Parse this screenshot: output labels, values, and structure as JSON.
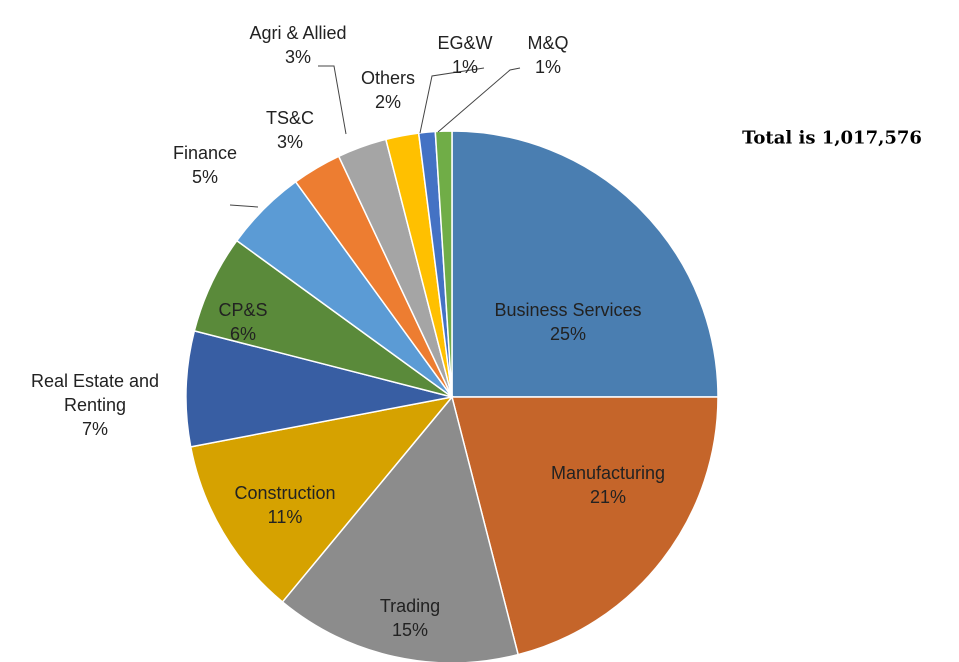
{
  "chart_data": {
    "type": "pie",
    "annotation": "Total is 1,017,576",
    "categories": [
      "Business Services",
      "Manufacturing",
      "Trading",
      "Construction",
      "Real Estate and Renting",
      "CP&S",
      "Finance",
      "TS&C",
      "Agri & Allied",
      "Others",
      "EG&W",
      "M&Q"
    ],
    "values": [
      25,
      21,
      15,
      11,
      7,
      6,
      5,
      3,
      3,
      2,
      1,
      1
    ],
    "value_labels": [
      "25%",
      "21%",
      "15%",
      "11%",
      "7%",
      "6%",
      "5%",
      "3%",
      "3%",
      "2%",
      "1%",
      "1%"
    ],
    "colors": [
      "#4a7eb1",
      "#c5652a",
      "#8c8c8c",
      "#d6a200",
      "#385ea3",
      "#5a8a3a",
      "#5b9bd5",
      "#ed7d31",
      "#a5a5a5",
      "#ffc000",
      "#4472c4",
      "#70ad47"
    ]
  }
}
